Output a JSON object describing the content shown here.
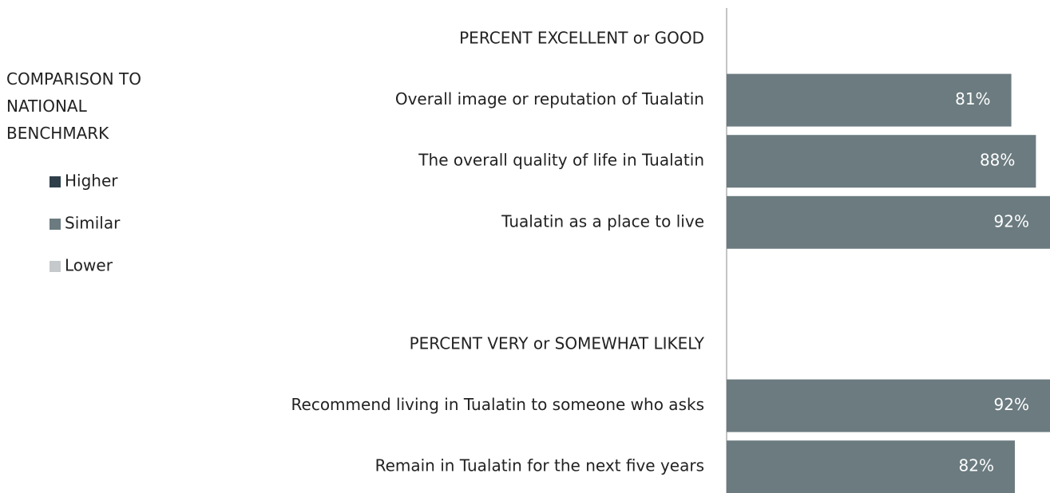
{
  "chart_data": {
    "type": "bar",
    "orientation": "horizontal",
    "categories": [
      "PERCENT EXCELLENT or GOOD",
      "Overall image or reputation of Tualatin",
      "The overall quality of life in Tualatin",
      "Tualatin as a place to live",
      null,
      "PERCENT VERY or SOMEWHAT LIKELY",
      "Recommend living in Tualatin to someone who asks",
      "Remain in Tualatin for the next five years"
    ],
    "values": [
      null,
      81,
      88,
      92,
      null,
      null,
      92,
      82
    ],
    "value_labels": [
      null,
      "81%",
      "88%",
      "92%",
      null,
      null,
      "92%",
      "82%"
    ],
    "color": "#6b7b80",
    "xlim": [
      0,
      92
    ],
    "legend_title": "COMPARISON TO NATIONAL BENCHMARK",
    "legend": [
      {
        "name": "Higher",
        "color": "#2e3f4a"
      },
      {
        "name": "Similar",
        "color": "#6b7b80"
      },
      {
        "name": "Lower",
        "color": "#c5c9cb"
      }
    ]
  }
}
